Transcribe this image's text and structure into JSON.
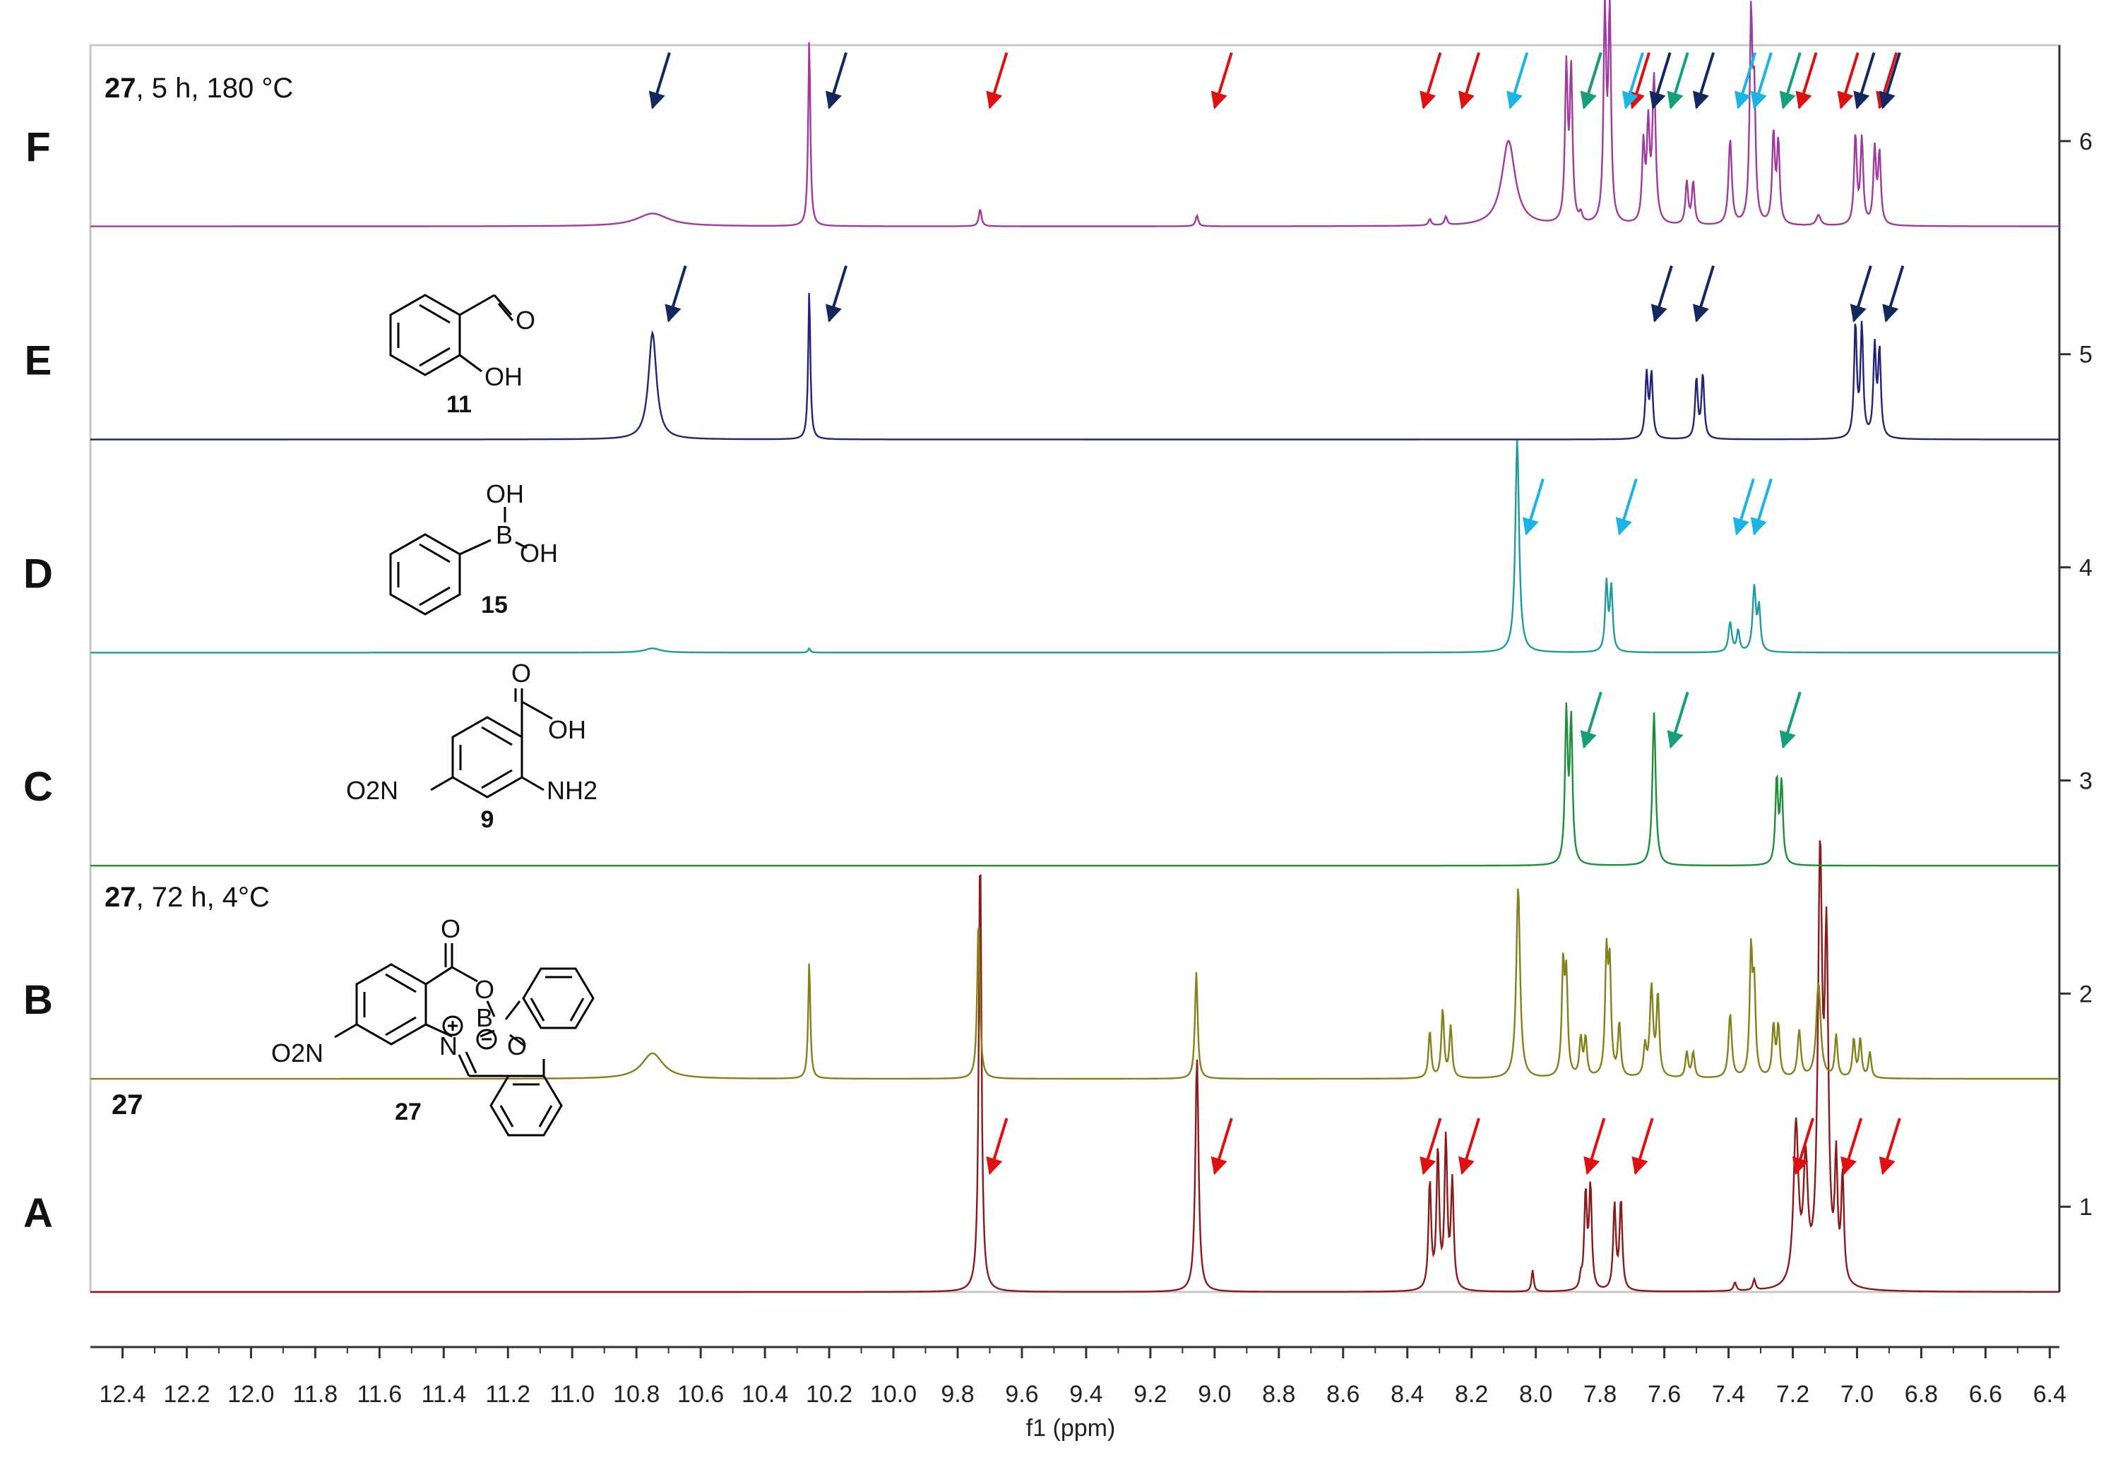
{
  "chart_data": {
    "type": "line",
    "xlabel": "f1 (ppm)",
    "x_reversed": true,
    "xlim": [
      12.5,
      6.37
    ],
    "x_ticks": [
      "12.4",
      "12.2",
      "12.0",
      "11.8",
      "11.6",
      "11.4",
      "11.2",
      "11.0",
      "10.8",
      "10.6",
      "10.4",
      "10.2",
      "10.0",
      "9.8",
      "9.6",
      "9.4",
      "9.2",
      "9.0",
      "8.8",
      "8.6",
      "8.4",
      "8.2",
      "8.0",
      "7.8",
      "7.6",
      "7.4",
      "7.2",
      "7.0",
      "6.8",
      "6.6",
      "6.4"
    ],
    "y_ticks": [
      "1",
      "2",
      "3",
      "4",
      "5",
      "6"
    ],
    "ylim": [
      0.6,
      6.45
    ],
    "grid": false,
    "arrow_colors": {
      "red": "#e01010",
      "navy": "#12285e",
      "cyan": "#1ab4e6",
      "green": "#14a07c"
    },
    "spectra": [
      {
        "row": "A",
        "offset": 0.6,
        "color": "#8b1a1a",
        "peaks": [
          [
            9.73,
            2.08,
            0.005
          ],
          [
            9.055,
            1.1,
            0.006
          ],
          [
            8.33,
            0.5,
            0.005
          ],
          [
            8.305,
            0.65,
            0.005
          ],
          [
            8.28,
            0.7,
            0.005
          ],
          [
            8.26,
            0.5,
            0.005
          ],
          [
            8.01,
            0.1,
            0.004
          ],
          [
            7.86,
            0.05,
            0.004
          ],
          [
            7.845,
            0.45,
            0.005
          ],
          [
            7.83,
            0.48,
            0.005
          ],
          [
            7.755,
            0.4,
            0.005
          ],
          [
            7.735,
            0.42,
            0.005
          ],
          [
            7.38,
            0.04,
            0.005
          ],
          [
            7.32,
            0.05,
            0.005
          ],
          [
            7.19,
            0.75,
            0.009
          ],
          [
            7.16,
            0.55,
            0.008
          ],
          [
            7.115,
            1.95,
            0.008
          ],
          [
            7.095,
            1.5,
            0.007
          ],
          [
            7.065,
            0.55,
            0.005
          ],
          [
            7.045,
            0.5,
            0.005
          ]
        ],
        "arrows": [
          [
            9.7,
            "red"
          ],
          [
            9.0,
            "red"
          ],
          [
            8.35,
            "red"
          ],
          [
            8.23,
            "red"
          ],
          [
            7.84,
            "red"
          ],
          [
            7.69,
            "red"
          ],
          [
            7.19,
            "red"
          ],
          [
            7.04,
            "red"
          ],
          [
            6.92,
            "red"
          ]
        ]
      },
      {
        "row": "B",
        "offset": 1.6,
        "color": "#84801a",
        "peaks": [
          [
            10.75,
            0.12,
            0.04
          ],
          [
            10.262,
            0.55,
            0.004
          ],
          [
            9.735,
            0.75,
            0.005
          ],
          [
            9.057,
            0.5,
            0.005
          ],
          [
            8.33,
            0.22,
            0.005
          ],
          [
            8.29,
            0.32,
            0.005
          ],
          [
            8.265,
            0.24,
            0.005
          ],
          [
            8.055,
            0.9,
            0.007
          ],
          [
            7.915,
            0.5,
            0.005
          ],
          [
            7.905,
            0.45,
            0.005
          ],
          [
            7.86,
            0.18,
            0.005
          ],
          [
            7.845,
            0.18,
            0.005
          ],
          [
            7.78,
            0.55,
            0.005
          ],
          [
            7.77,
            0.5,
            0.005
          ],
          [
            7.74,
            0.25,
            0.005
          ],
          [
            7.64,
            0.42,
            0.006
          ],
          [
            7.62,
            0.38,
            0.005
          ],
          [
            7.66,
            0.14,
            0.005
          ],
          [
            7.53,
            0.12,
            0.005
          ],
          [
            7.51,
            0.12,
            0.005
          ],
          [
            7.395,
            0.3,
            0.006
          ],
          [
            7.33,
            0.58,
            0.005
          ],
          [
            7.32,
            0.4,
            0.005
          ],
          [
            7.26,
            0.24,
            0.005
          ],
          [
            7.245,
            0.24,
            0.005
          ],
          [
            7.18,
            0.22,
            0.006
          ],
          [
            7.12,
            0.45,
            0.008
          ],
          [
            7.065,
            0.2,
            0.005
          ],
          [
            7.01,
            0.18,
            0.005
          ],
          [
            6.99,
            0.18,
            0.005
          ],
          [
            6.96,
            0.12,
            0.005
          ]
        ],
        "arrows": []
      },
      {
        "row": "C",
        "offset": 2.6,
        "color": "#1d8f3a",
        "peaks": [
          [
            7.905,
            0.7,
            0.005
          ],
          [
            7.89,
            0.66,
            0.005
          ],
          [
            7.632,
            0.72,
            0.006
          ],
          [
            7.25,
            0.4,
            0.005
          ],
          [
            7.235,
            0.38,
            0.005
          ]
        ],
        "arrows": [
          [
            7.85,
            "green"
          ],
          [
            7.58,
            "green"
          ],
          [
            7.23,
            "green"
          ]
        ]
      },
      {
        "row": "D",
        "offset": 3.6,
        "color": "#1f9aa0",
        "peaks": [
          [
            10.75,
            0.02,
            0.03
          ],
          [
            10.262,
            0.02,
            0.004
          ],
          [
            8.058,
            1.0,
            0.007
          ],
          [
            7.78,
            0.32,
            0.005
          ],
          [
            7.765,
            0.3,
            0.005
          ],
          [
            7.395,
            0.14,
            0.006
          ],
          [
            7.37,
            0.1,
            0.005
          ],
          [
            7.32,
            0.3,
            0.006
          ],
          [
            7.305,
            0.2,
            0.005
          ]
        ],
        "arrows": [
          [
            8.03,
            "cyan"
          ],
          [
            7.74,
            "cyan"
          ],
          [
            7.375,
            "cyan"
          ],
          [
            7.32,
            "cyan"
          ]
        ]
      },
      {
        "row": "E",
        "offset": 4.6,
        "color": "#23237a",
        "peaks": [
          [
            10.75,
            0.5,
            0.015
          ],
          [
            10.262,
            0.7,
            0.004
          ],
          [
            7.655,
            0.3,
            0.005
          ],
          [
            7.64,
            0.3,
            0.005
          ],
          [
            7.5,
            0.28,
            0.005
          ],
          [
            7.48,
            0.3,
            0.005
          ],
          [
            7.005,
            0.53,
            0.005
          ],
          [
            6.985,
            0.52,
            0.005
          ],
          [
            6.945,
            0.42,
            0.005
          ],
          [
            6.93,
            0.4,
            0.005
          ]
        ],
        "arrows": [
          [
            10.7,
            "navy"
          ],
          [
            10.2,
            "navy"
          ],
          [
            7.63,
            "navy"
          ],
          [
            7.5,
            "navy"
          ],
          [
            7.01,
            "navy"
          ],
          [
            6.91,
            "navy"
          ]
        ]
      },
      {
        "row": "F",
        "offset": 5.6,
        "color": "#a03aa0",
        "peaks": [
          [
            10.75,
            0.06,
            0.06
          ],
          [
            10.262,
            0.88,
            0.004
          ],
          [
            9.73,
            0.08,
            0.005
          ],
          [
            9.055,
            0.05,
            0.005
          ],
          [
            8.33,
            0.03,
            0.005
          ],
          [
            8.28,
            0.04,
            0.005
          ],
          [
            8.085,
            0.4,
            0.025
          ],
          [
            7.905,
            0.72,
            0.005
          ],
          [
            7.89,
            0.7,
            0.005
          ],
          [
            7.86,
            0.04,
            0.005
          ],
          [
            7.785,
            0.98,
            0.005
          ],
          [
            7.77,
            0.97,
            0.005
          ],
          [
            7.665,
            0.36,
            0.005
          ],
          [
            7.65,
            0.44,
            0.005
          ],
          [
            7.632,
            0.68,
            0.006
          ],
          [
            7.53,
            0.2,
            0.005
          ],
          [
            7.51,
            0.2,
            0.005
          ],
          [
            7.395,
            0.4,
            0.006
          ],
          [
            7.33,
            0.95,
            0.005
          ],
          [
            7.32,
            0.55,
            0.005
          ],
          [
            7.26,
            0.42,
            0.005
          ],
          [
            7.245,
            0.38,
            0.005
          ],
          [
            7.12,
            0.05,
            0.008
          ],
          [
            7.005,
            0.42,
            0.005
          ],
          [
            6.985,
            0.4,
            0.005
          ],
          [
            6.945,
            0.35,
            0.005
          ],
          [
            6.93,
            0.33,
            0.005
          ]
        ],
        "arrows": [
          [
            10.75,
            "navy"
          ],
          [
            10.2,
            "navy"
          ],
          [
            9.7,
            "red"
          ],
          [
            9.0,
            "red"
          ],
          [
            8.35,
            "red"
          ],
          [
            8.23,
            "red"
          ],
          [
            8.08,
            "cyan"
          ],
          [
            7.85,
            "red"
          ],
          [
            7.85,
            "green"
          ],
          [
            7.7,
            "red"
          ],
          [
            7.72,
            "cyan"
          ],
          [
            7.635,
            "navy"
          ],
          [
            7.58,
            "green"
          ],
          [
            7.5,
            "navy"
          ],
          [
            7.37,
            "cyan"
          ],
          [
            7.32,
            "cyan"
          ],
          [
            7.23,
            "green"
          ],
          [
            7.18,
            "red"
          ],
          [
            7.05,
            "red"
          ],
          [
            7.0,
            "navy"
          ],
          [
            6.93,
            "red"
          ],
          [
            6.92,
            "navy"
          ]
        ]
      }
    ],
    "annotations": [
      {
        "row": "F",
        "bold": "27",
        "text": ", 5 h, 180 °C"
      },
      {
        "row": "B",
        "bold": "27",
        "text": ", 72 h, 4°C"
      },
      {
        "row": "A",
        "bold": "27",
        "text": ""
      }
    ],
    "structures": [
      {
        "row": "E",
        "compound": "11",
        "labels": [
          "O",
          "OH"
        ]
      },
      {
        "row": "D",
        "compound": "15",
        "labels": [
          "OH",
          "B",
          "OH"
        ]
      },
      {
        "row": "C",
        "compound": "9",
        "labels": [
          "O",
          "OH",
          "O2N",
          "NH2"
        ]
      },
      {
        "row": "B",
        "compound": "27",
        "labels": [
          "O",
          "O",
          "B",
          "N",
          "O",
          "O2N"
        ]
      }
    ]
  }
}
